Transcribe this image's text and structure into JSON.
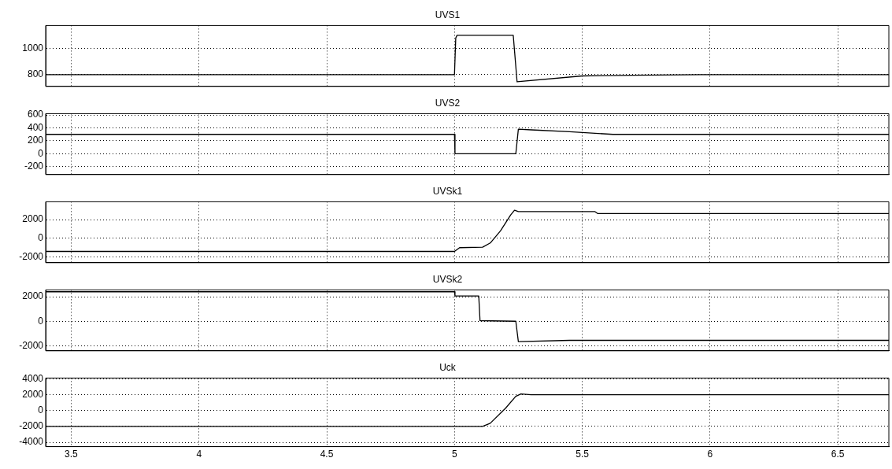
{
  "chart_data": [
    {
      "type": "line",
      "title": "UVS1",
      "x": [
        3.4,
        5.0,
        5.005,
        5.01,
        5.23,
        5.245,
        5.5,
        5.7,
        5.96,
        6.7
      ],
      "values": [
        800,
        800,
        1080,
        1100,
        1100,
        745,
        790,
        795,
        800,
        800
      ],
      "color": "#000000",
      "xlim": [
        3.4,
        6.7
      ],
      "xticks": [
        3.5,
        4,
        4.5,
        5,
        5.5,
        6,
        6.5
      ],
      "ylim": [
        710,
        1175
      ],
      "yticks": [
        800,
        1000
      ],
      "grid": true,
      "tick_labels": "y"
    },
    {
      "type": "line",
      "title": "UVS2",
      "x": [
        3.4,
        5.0,
        5.002,
        5.24,
        5.25,
        5.3,
        5.45,
        5.62,
        6.7
      ],
      "values": [
        300,
        300,
        0,
        0,
        380,
        370,
        340,
        300,
        300
      ],
      "color": "#000000",
      "xlim": [
        3.4,
        6.7
      ],
      "xticks": [
        3.5,
        4,
        4.5,
        5,
        5.5,
        6,
        6.5
      ],
      "ylim": [
        -320,
        620
      ],
      "yticks": [
        -200,
        0,
        200,
        400,
        600
      ],
      "grid": true,
      "tick_labels": "y"
    },
    {
      "type": "line",
      "title": "UVSk1",
      "x": [
        3.4,
        5.0,
        5.02,
        5.11,
        5.14,
        5.18,
        5.22,
        5.235,
        5.25,
        5.55,
        5.56,
        6.7
      ],
      "values": [
        -1400,
        -1400,
        -1000,
        -950,
        -500,
        800,
        2500,
        3000,
        2850,
        2850,
        2650,
        2650
      ],
      "color": "#000000",
      "xlim": [
        3.4,
        6.7
      ],
      "xticks": [
        3.5,
        4,
        4.5,
        5,
        5.5,
        6,
        6.5
      ],
      "ylim": [
        -2600,
        3900
      ],
      "yticks": [
        -2000,
        0,
        2000
      ],
      "grid": true,
      "tick_labels": "y"
    },
    {
      "type": "line",
      "title": "UVSk2",
      "x": [
        3.4,
        5.0,
        5.002,
        5.095,
        5.1,
        5.24,
        5.25,
        5.45,
        6.7
      ],
      "values": [
        2400,
        2400,
        2050,
        2050,
        50,
        0,
        -1650,
        -1550,
        -1550
      ],
      "color": "#000000",
      "xlim": [
        3.4,
        6.7
      ],
      "xticks": [
        3.5,
        4,
        4.5,
        5,
        5.5,
        6,
        6.5
      ],
      "ylim": [
        -2400,
        2550
      ],
      "yticks": [
        -2000,
        0,
        2000
      ],
      "grid": true,
      "tick_labels": "y"
    },
    {
      "type": "line",
      "title": "Uck",
      "x": [
        3.4,
        5.11,
        5.14,
        5.2,
        5.24,
        5.26,
        5.3,
        6.7
      ],
      "values": [
        -2000,
        -2000,
        -1600,
        300,
        1800,
        2100,
        2000,
        2000
      ],
      "color": "#000000",
      "xlim": [
        3.4,
        6.7
      ],
      "xticks": [
        3.5,
        4,
        4.5,
        5,
        5.5,
        6,
        6.5
      ],
      "ylim": [
        -4550,
        4100
      ],
      "yticks": [
        -4000,
        -2000,
        0,
        2000,
        4000
      ],
      "grid": true
    }
  ]
}
